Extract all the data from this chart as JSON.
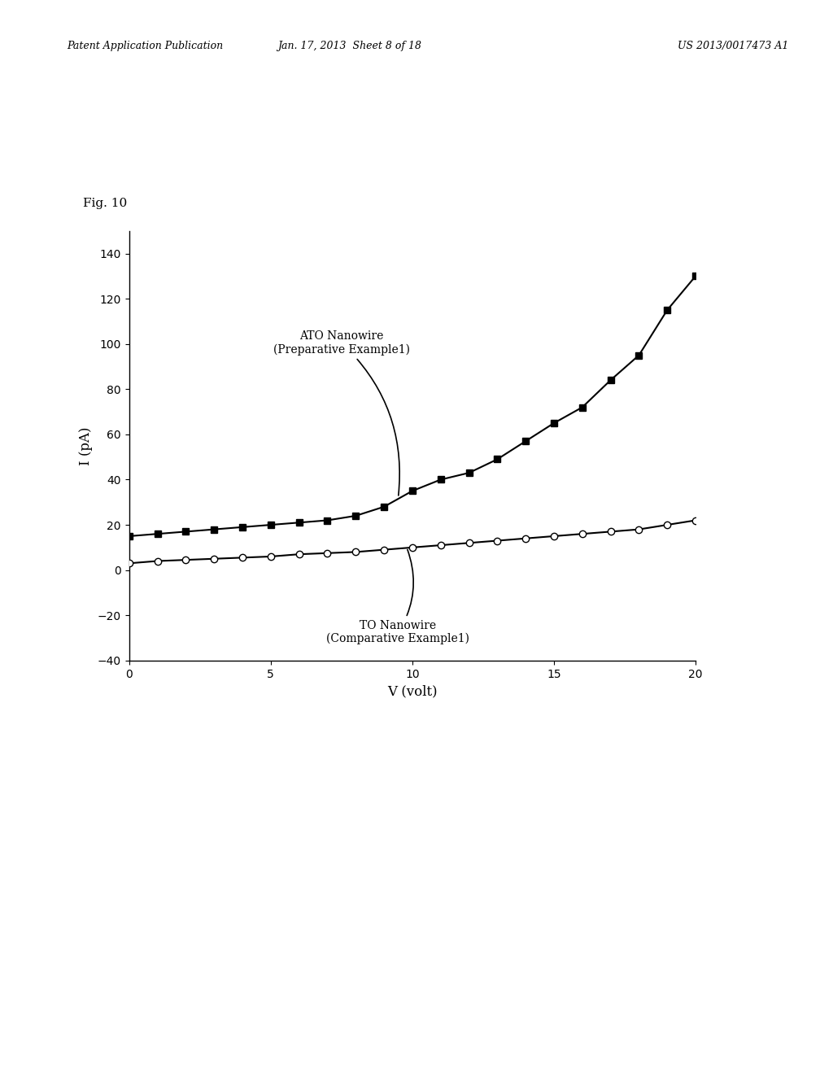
{
  "fig_label": "Fig. 10",
  "xlabel": "V (volt)",
  "ylabel": "I (pA)",
  "xlim": [
    0,
    20
  ],
  "ylim": [
    -40,
    150
  ],
  "yticks": [
    -40,
    -20,
    0,
    20,
    40,
    60,
    80,
    100,
    120,
    140
  ],
  "xticks": [
    0,
    5,
    10,
    15,
    20
  ],
  "ato_label": "ATO Nanowire\n(Preparative Example1)",
  "to_label": "TO Nanowire\n(Comparative Example1)",
  "ato_x": [
    0,
    1,
    2,
    3,
    4,
    5,
    6,
    7,
    8,
    9,
    10,
    11,
    12,
    13,
    14,
    15,
    16,
    17,
    18,
    19,
    20
  ],
  "ato_y": [
    15,
    16,
    17,
    18,
    19,
    20,
    21,
    22,
    24,
    28,
    35,
    40,
    43,
    49,
    57,
    65,
    72,
    84,
    95,
    115,
    130
  ],
  "to_x": [
    0,
    1,
    2,
    3,
    4,
    5,
    6,
    7,
    8,
    9,
    10,
    11,
    12,
    13,
    14,
    15,
    16,
    17,
    18,
    19,
    20
  ],
  "to_y": [
    3,
    4,
    4.5,
    5,
    5.5,
    6,
    7,
    7.5,
    8,
    9,
    10,
    11,
    12,
    13,
    14,
    15,
    16,
    17,
    18,
    20,
    22
  ],
  "line_color": "#000000",
  "background_color": "#ffffff",
  "header_left": "Patent Application Publication",
  "header_mid": "Jan. 17, 2013  Sheet 8 of 18",
  "header_right": "US 2013/0017473 A1"
}
